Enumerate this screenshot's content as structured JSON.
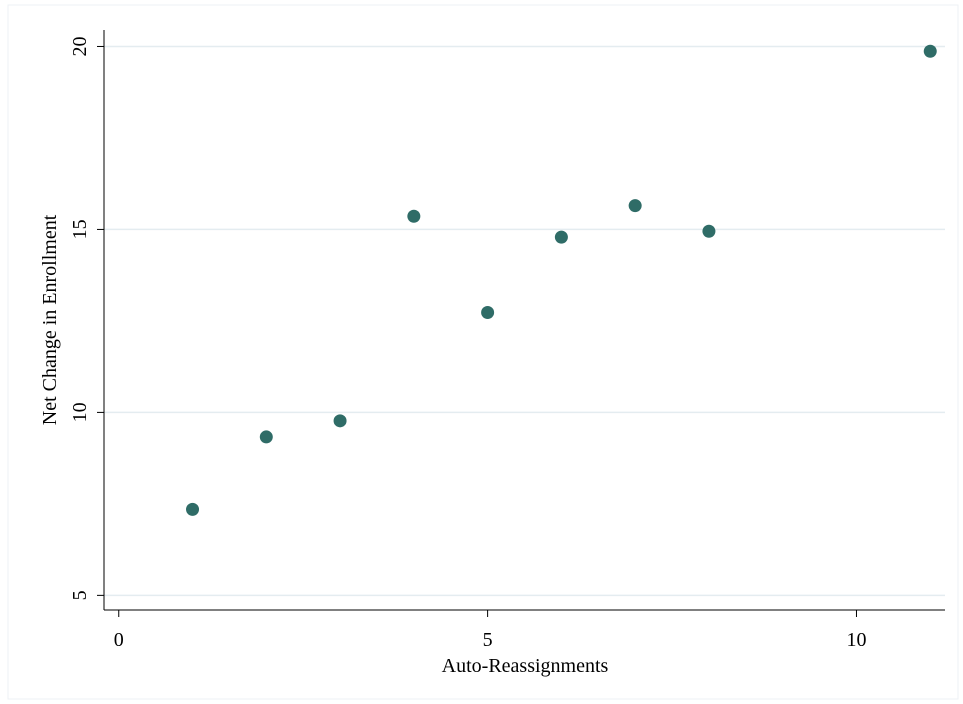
{
  "chart_data": {
    "type": "scatter",
    "x_label": "Auto-Reassignments",
    "y_label": "Net Change in Enrollment",
    "color": "#2f6c67",
    "grid": true,
    "xlim": [
      -0.2,
      11.2
    ],
    "xticks": [
      0,
      5,
      10
    ],
    "ylim": [
      4.6,
      20.45
    ],
    "yticks": [
      5,
      10,
      15,
      20
    ],
    "series": [
      {
        "x": [
          1,
          2,
          3,
          4,
          5,
          6,
          7,
          8,
          11
        ],
        "values": [
          7.35,
          9.33,
          9.77,
          15.36,
          12.73,
          14.79,
          15.65,
          14.95,
          19.87
        ]
      }
    ]
  }
}
